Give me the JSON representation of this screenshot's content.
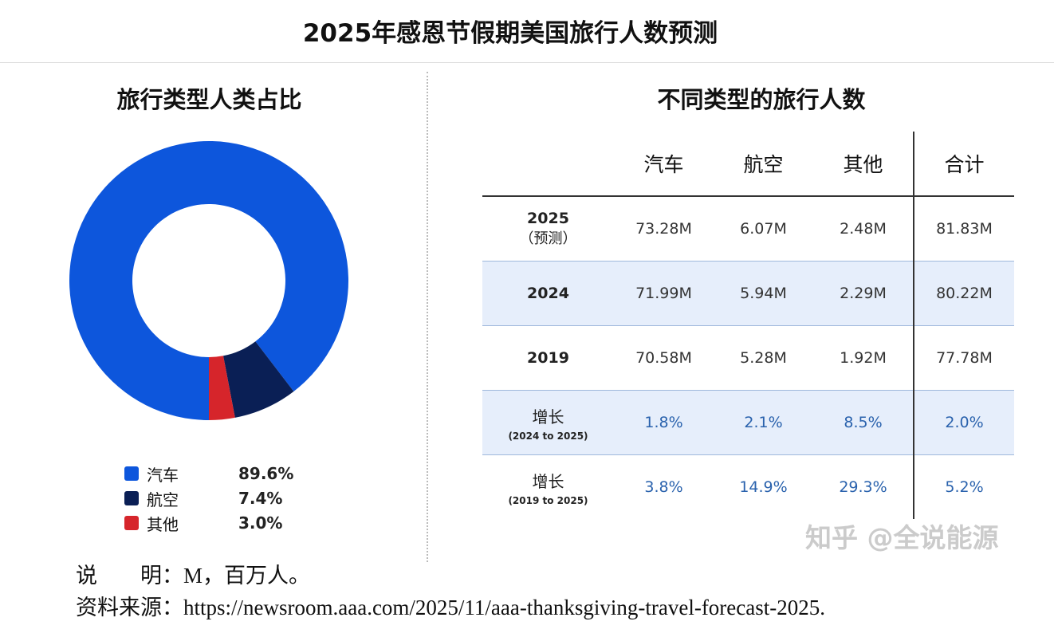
{
  "title": "2025年感恩节假期美国旅行人数预测",
  "chart_data": [
    {
      "type": "pie",
      "donut": true,
      "title": "旅行类型人类占比",
      "categories": [
        "汽车",
        "航空",
        "其他"
      ],
      "values": [
        89.6,
        7.4,
        3.0
      ],
      "value_labels": [
        "89.6%",
        "7.4%",
        "3.0%"
      ],
      "colors": [
        "#0d56dc",
        "#0a1f55",
        "#d6252b"
      ],
      "start": "bottom",
      "legend": "bottom"
    },
    {
      "type": "table",
      "title": "不同类型的旅行人数",
      "columns": [
        "",
        "汽车",
        "航空",
        "其他",
        "合计"
      ],
      "rows": [
        {
          "label": "2025",
          "sublabel": "（预测）",
          "values": [
            "73.28M",
            "6.07M",
            "2.48M",
            "81.83M"
          ],
          "shaded": false,
          "growth": false
        },
        {
          "label": "2024",
          "sublabel": "",
          "values": [
            "71.99M",
            "5.94M",
            "2.29M",
            "80.22M"
          ],
          "shaded": true,
          "growth": false
        },
        {
          "label": "2019",
          "sublabel": "",
          "values": [
            "70.58M",
            "5.28M",
            "1.92M",
            "77.78M"
          ],
          "shaded": false,
          "growth": false
        },
        {
          "label": "增长",
          "sublabel": "(2024 to 2025)",
          "values": [
            "1.8%",
            "2.1%",
            "8.5%",
            "2.0%"
          ],
          "shaded": true,
          "growth": true
        },
        {
          "label": "增长",
          "sublabel": "(2019 to 2025)",
          "values": [
            "3.8%",
            "14.9%",
            "29.3%",
            "5.2%"
          ],
          "shaded": false,
          "growth": true
        }
      ]
    }
  ],
  "notes": {
    "explain": "说　　明：M，百万人。",
    "source": "资料来源：https://newsroom.aaa.com/2025/11/aaa-thanksgiving-travel-forecast-2025."
  },
  "watermark": "知乎 @全说能源"
}
